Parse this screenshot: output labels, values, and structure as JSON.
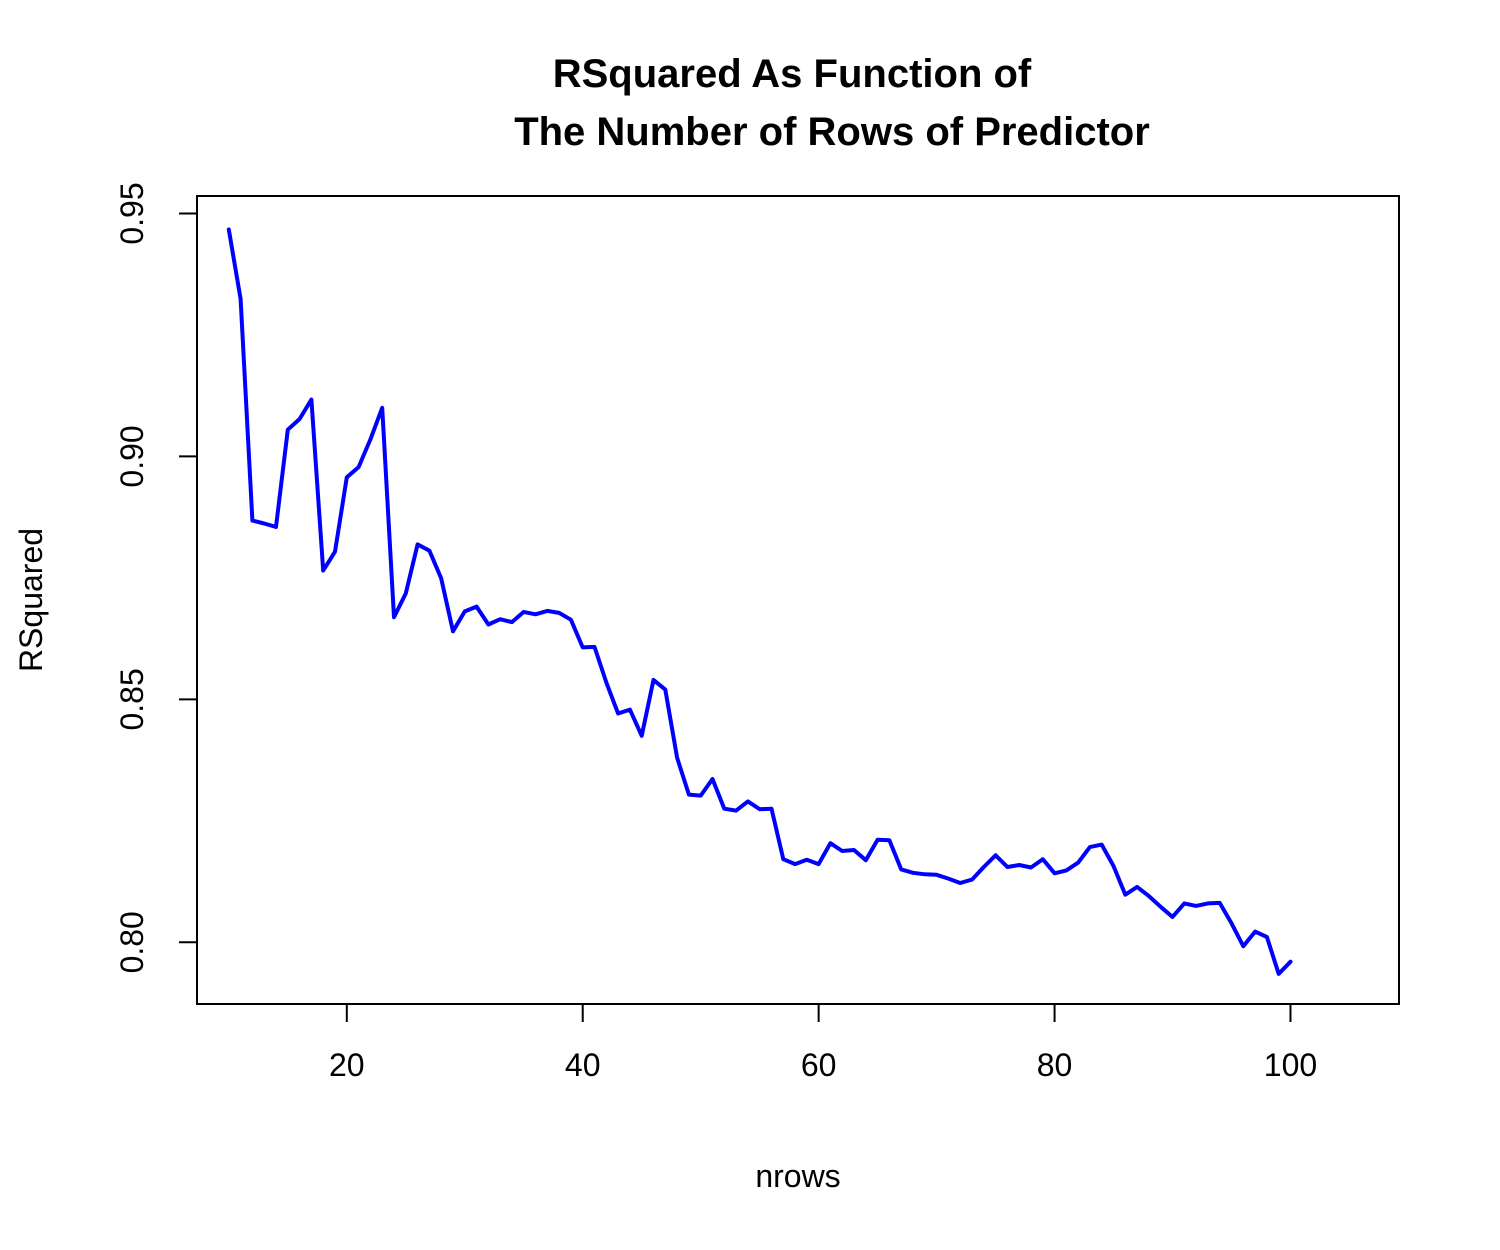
{
  "chart_data": {
    "type": "line",
    "title": [
      "RSquared As Function of",
      "The Number of Rows of Predictor"
    ],
    "xlabel": "nrows",
    "ylabel": "RSquared",
    "xlim": [
      7.3,
      109.2
    ],
    "ylim": [
      0.7873,
      0.9536
    ],
    "xticks": [
      20,
      40,
      60,
      80,
      100
    ],
    "yticks": [
      0.8,
      0.85,
      0.9,
      0.95
    ],
    "xtick_labels": [
      "20",
      "40",
      "60",
      "80",
      "100"
    ],
    "ytick_labels": [
      "0.80",
      "0.85",
      "0.90",
      "0.95"
    ],
    "grid": false,
    "series": [
      {
        "color": "#0000ff",
        "x": [
          10,
          11,
          12,
          13,
          14,
          15,
          16,
          17,
          18,
          19,
          20,
          21,
          22,
          23,
          24,
          25,
          26,
          27,
          28,
          29,
          30,
          31,
          32,
          33,
          34,
          35,
          36,
          37,
          38,
          39,
          40,
          41,
          42,
          43,
          44,
          45,
          46,
          47,
          48,
          49,
          50,
          51,
          52,
          53,
          54,
          55,
          56,
          57,
          58,
          59,
          60,
          61,
          62,
          63,
          64,
          65,
          66,
          67,
          68,
          69,
          70,
          71,
          72,
          73,
          74,
          75,
          76,
          77,
          78,
          79,
          80,
          81,
          82,
          83,
          84,
          85,
          86,
          87,
          88,
          89,
          90,
          91,
          92,
          93,
          94,
          95,
          96,
          97,
          98,
          99,
          100
        ],
        "y": [
          0.9467,
          0.9324,
          0.8868,
          0.8862,
          0.8855,
          0.9055,
          0.9077,
          0.9117,
          0.8765,
          0.8804,
          0.8957,
          0.8978,
          0.9035,
          0.91,
          0.8669,
          0.8718,
          0.8819,
          0.8806,
          0.8749,
          0.864,
          0.8681,
          0.8691,
          0.8654,
          0.8665,
          0.8659,
          0.868,
          0.8675,
          0.8682,
          0.8678,
          0.8664,
          0.8607,
          0.8608,
          0.8535,
          0.8471,
          0.8479,
          0.8425,
          0.854,
          0.852,
          0.838,
          0.8304,
          0.8302,
          0.8336,
          0.8275,
          0.8271,
          0.829,
          0.8274,
          0.8275,
          0.8171,
          0.8161,
          0.817,
          0.8161,
          0.8204,
          0.8188,
          0.819,
          0.8169,
          0.8211,
          0.821,
          0.815,
          0.8143,
          0.814,
          0.8139,
          0.8131,
          0.8122,
          0.8129,
          0.8155,
          0.8179,
          0.8155,
          0.8159,
          0.8154,
          0.8171,
          0.8142,
          0.8148,
          0.8164,
          0.8196,
          0.8201,
          0.8157,
          0.8098,
          0.8114,
          0.8095,
          0.8073,
          0.8052,
          0.808,
          0.8075,
          0.808,
          0.8081,
          0.8039,
          0.7992,
          0.8022,
          0.8011,
          0.7935,
          0.796
        ]
      }
    ]
  }
}
